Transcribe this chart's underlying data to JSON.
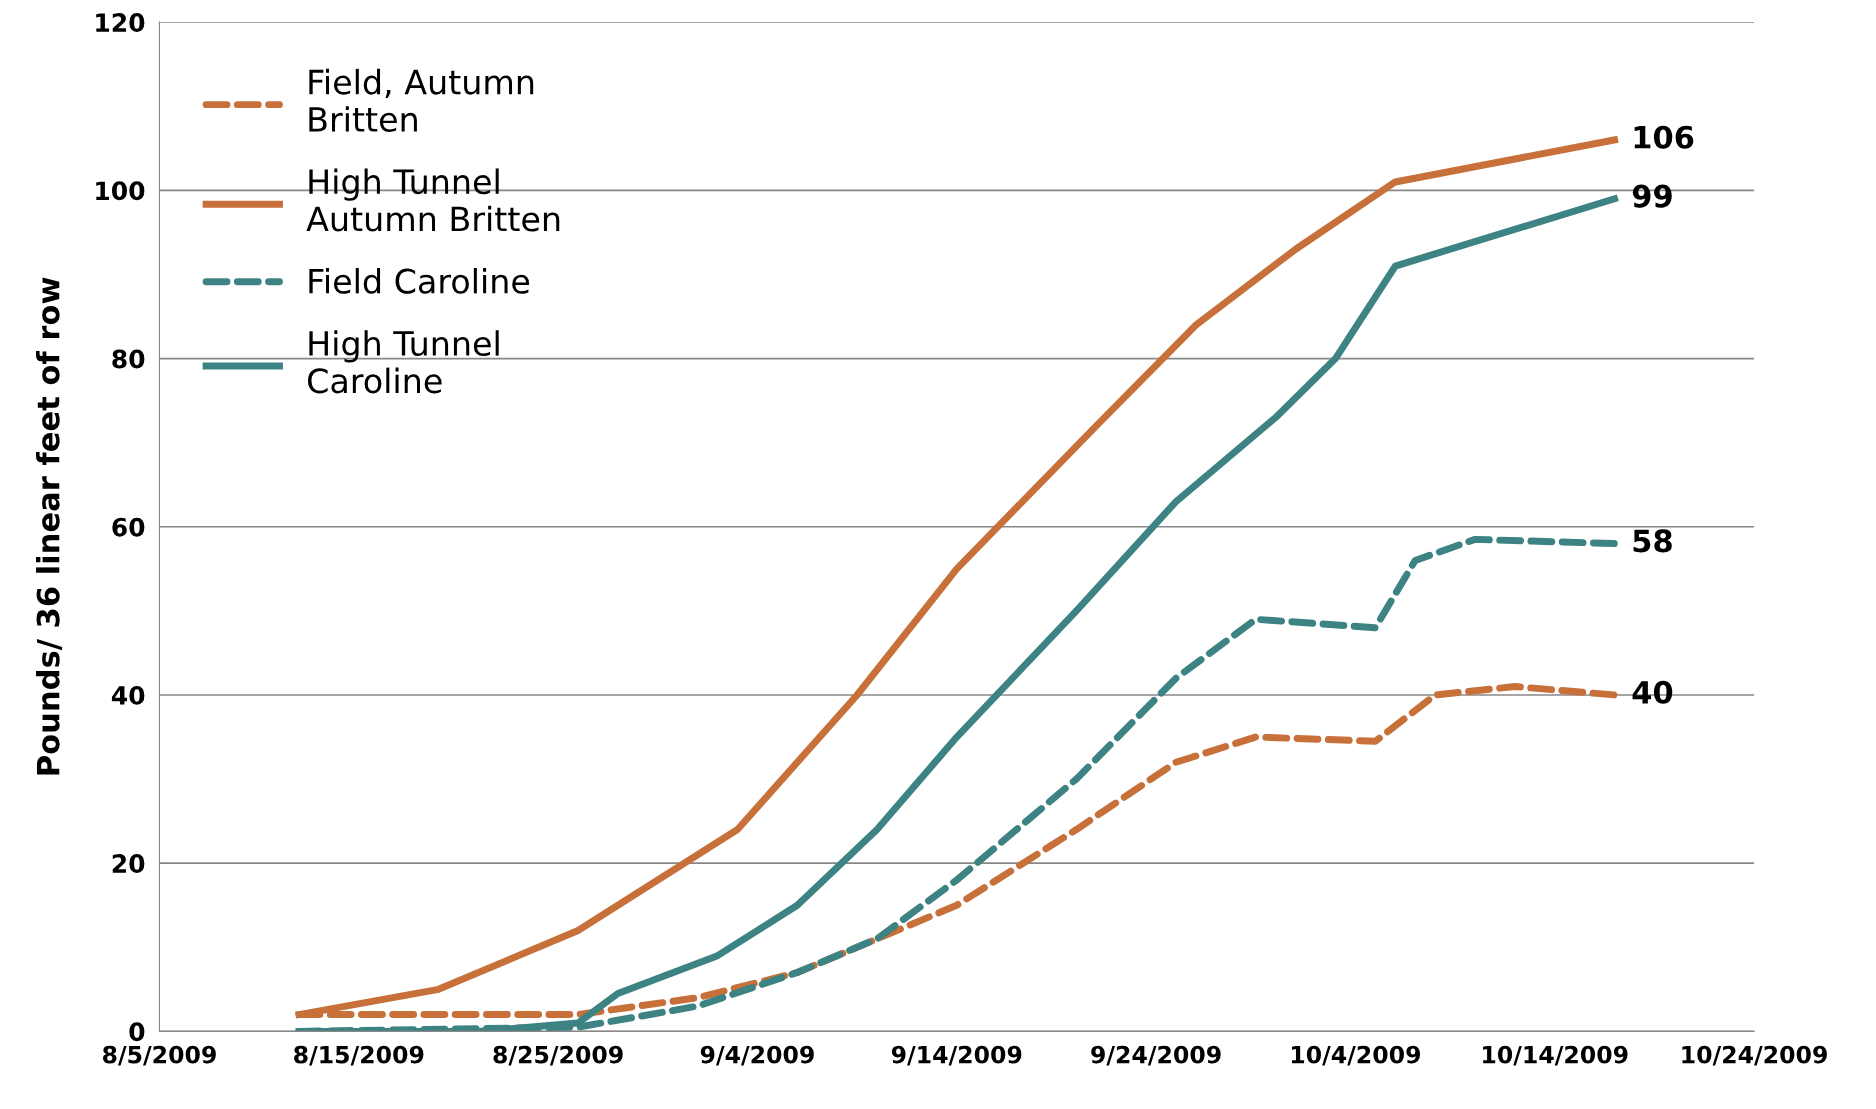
{
  "chart_data": {
    "type": "line",
    "ylabel": "Pounds/ 36 linear feet of row",
    "xlim": [
      "2009-08-05",
      "2009-10-24"
    ],
    "xticks": [
      {
        "value": "2009-08-05",
        "label": "8/5/2009"
      },
      {
        "value": "2009-08-15",
        "label": "8/15/2009"
      },
      {
        "value": "2009-08-25",
        "label": "8/25/2009"
      },
      {
        "value": "2009-09-04",
        "label": "9/4/2009"
      },
      {
        "value": "2009-09-14",
        "label": "9/14/2009"
      },
      {
        "value": "2009-09-24",
        "label": "9/24/2009"
      },
      {
        "value": "2009-10-04",
        "label": "10/4/2009"
      },
      {
        "value": "2009-10-14",
        "label": "10/14/2009"
      },
      {
        "value": "2009-10-24",
        "label": "10/24/2009"
      }
    ],
    "ylim": [
      0,
      120
    ],
    "yticks": [
      0,
      20,
      40,
      60,
      80,
      100,
      120
    ],
    "grid": "y",
    "legend": "top left",
    "marker": "none",
    "series": [
      {
        "name": "Field, Autumn\nBritten",
        "color": "#c8703a",
        "line_style": "dashed",
        "x": [
          "2009-08-12",
          "2009-08-26",
          "2009-09-01",
          "2009-09-06",
          "2009-09-10",
          "2009-09-14",
          "2009-09-20",
          "2009-09-25",
          "2009-09-29",
          "2009-10-05",
          "2009-10-08",
          "2009-10-12",
          "2009-10-17"
        ],
        "values": [
          2,
          2,
          4,
          7,
          11,
          15,
          24,
          32,
          35,
          34.5,
          40,
          41,
          40
        ]
      },
      {
        "name": "High Tunnel\nAutumn Britten",
        "color": "#c8703a",
        "line_style": "solid",
        "x": [
          "2009-08-12",
          "2009-08-19",
          "2009-08-26",
          "2009-09-03",
          "2009-09-09",
          "2009-09-14",
          "2009-09-21",
          "2009-09-26",
          "2009-10-01",
          "2009-10-06",
          "2009-10-17"
        ],
        "values": [
          2,
          5,
          12,
          24,
          40,
          55,
          72,
          84,
          93,
          101,
          106
        ]
      },
      {
        "name": "Field Caroline",
        "color": "#3e8383",
        "line_style": "dashed",
        "x": [
          "2009-08-12",
          "2009-08-26",
          "2009-09-01",
          "2009-09-06",
          "2009-09-10",
          "2009-09-14",
          "2009-09-20",
          "2009-09-25",
          "2009-09-29",
          "2009-10-05",
          "2009-10-07",
          "2009-10-10",
          "2009-10-17"
        ],
        "values": [
          0,
          0.5,
          3,
          7,
          11,
          18,
          30,
          42,
          49,
          48,
          56,
          58.5,
          58
        ]
      },
      {
        "name": "High Tunnel\nCaroline",
        "color": "#3e8383",
        "line_style": "solid",
        "x": [
          "2009-08-12",
          "2009-08-21",
          "2009-08-26",
          "2009-08-28",
          "2009-09-02",
          "2009-09-06",
          "2009-09-10",
          "2009-09-14",
          "2009-09-20",
          "2009-09-25",
          "2009-09-30",
          "2009-10-03",
          "2009-10-06",
          "2009-10-17"
        ],
        "values": [
          0,
          0,
          1,
          4.5,
          9,
          15,
          24,
          35,
          50,
          63,
          73,
          80,
          91,
          99
        ]
      }
    ],
    "annotations": [
      {
        "text": "106",
        "x": "2009-10-17",
        "y": 106
      },
      {
        "text": "99",
        "x": "2009-10-17",
        "y": 99
      },
      {
        "text": "58",
        "x": "2009-10-17",
        "y": 58
      },
      {
        "text": "40",
        "x": "2009-10-17",
        "y": 40
      }
    ]
  }
}
